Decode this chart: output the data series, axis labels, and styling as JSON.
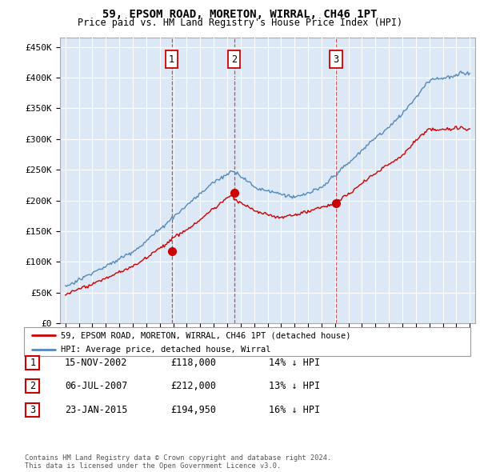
{
  "title": "59, EPSOM ROAD, MORETON, WIRRAL, CH46 1PT",
  "subtitle": "Price paid vs. HM Land Registry's House Price Index (HPI)",
  "ylabel_ticks": [
    "£0",
    "£50K",
    "£100K",
    "£150K",
    "£200K",
    "£250K",
    "£300K",
    "£350K",
    "£400K",
    "£450K"
  ],
  "ylim": [
    0,
    470000
  ],
  "sale_dates_num": [
    2002.88,
    2007.51,
    2015.07
  ],
  "sale_prices": [
    118000,
    212000,
    194950
  ],
  "sale_labels": [
    "1",
    "2",
    "3"
  ],
  "legend_red": "59, EPSOM ROAD, MORETON, WIRRAL, CH46 1PT (detached house)",
  "legend_blue": "HPI: Average price, detached house, Wirral",
  "table_rows": [
    [
      "1",
      "15-NOV-2002",
      "£118,000",
      "14% ↓ HPI"
    ],
    [
      "2",
      "06-JUL-2007",
      "£212,000",
      "13% ↓ HPI"
    ],
    [
      "3",
      "23-JAN-2015",
      "£194,950",
      "16% ↓ HPI"
    ]
  ],
  "footer": "Contains HM Land Registry data © Crown copyright and database right 2024.\nThis data is licensed under the Open Government Licence v3.0.",
  "chart_bg": "#dce8f5",
  "grid_color": "#ffffff",
  "red_line_color": "#cc0000",
  "blue_line_color": "#5588bb"
}
